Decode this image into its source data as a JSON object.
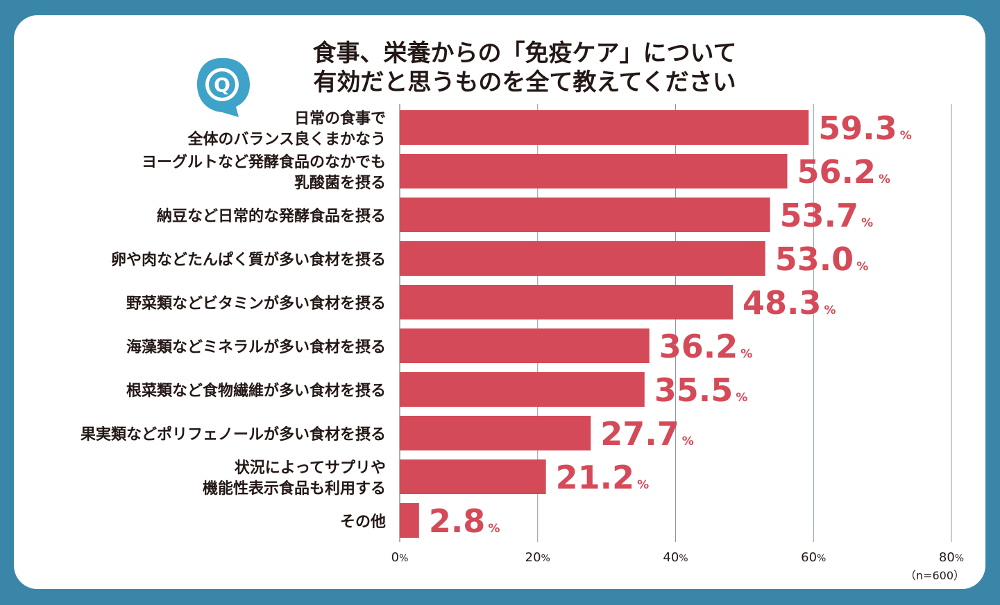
{
  "colors": {
    "frame": "#3a86a9",
    "card": "#ffffff",
    "bar": "#d54a58",
    "value": "#d54a58",
    "grid": "#8a97a6",
    "text": "#231815",
    "logo": "#3fa2c9"
  },
  "logo": {
    "icon": "q-speech-bubble-icon",
    "letter": "Q"
  },
  "chart_data": {
    "type": "bar",
    "orientation": "horizontal",
    "title_lines": [
      "食事、栄養からの「免疫ケア」について",
      "有効だと思うものを全て教えてください"
    ],
    "categories": [
      [
        "日常の食事で",
        "全体のバランス良くまかなう"
      ],
      [
        "ヨーグルトなど発酵食品のなかでも",
        "乳酸菌を摂る"
      ],
      [
        "納豆など日常的な発酵食品を摂る"
      ],
      [
        "卵や肉などたんぱく質が多い食材を摂る"
      ],
      [
        "野菜類などビタミンが多い食材を摂る"
      ],
      [
        "海藻類などミネラルが多い食材を摂る"
      ],
      [
        "根菜類など食物繊維が多い食材を摂る"
      ],
      [
        "果実類などポリフェノールが多い食材を摂る"
      ],
      [
        "状況によってサプリや",
        "機能性表示食品も利用する"
      ],
      [
        "その他"
      ]
    ],
    "values": [
      59.3,
      56.2,
      53.7,
      53.0,
      48.3,
      36.2,
      35.5,
      27.7,
      21.2,
      2.8
    ],
    "value_labels": [
      "59.3",
      "56.2",
      "53.7",
      "53.0",
      "48.3",
      "36.2",
      "35.5",
      "27.7",
      "21.2",
      "2.8"
    ],
    "value_unit": "%",
    "xlim": [
      0,
      80
    ],
    "xticks": [
      0,
      20,
      40,
      60,
      80
    ],
    "xtick_labels": [
      "0",
      "20",
      "40",
      "60",
      "80"
    ],
    "xtick_unit": "%",
    "grid": true,
    "note": "（n=600）"
  }
}
